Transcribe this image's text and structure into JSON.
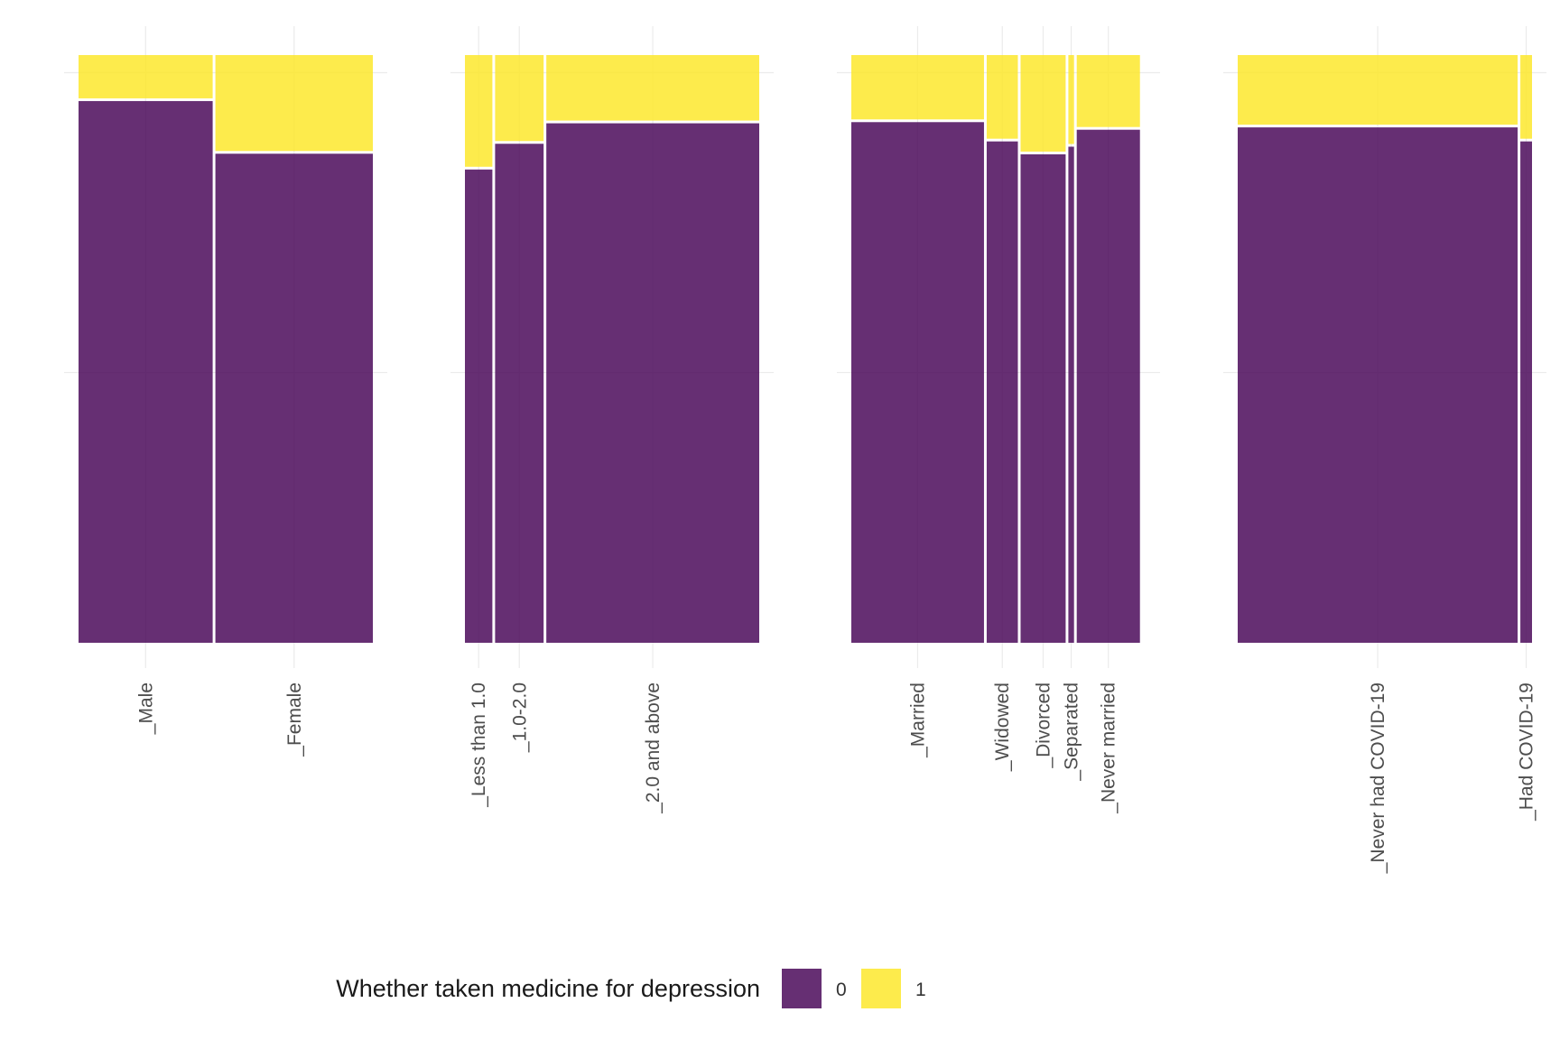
{
  "chart_data": {
    "type": "mosaic",
    "legend": {
      "title": "Whether taken medicine for depression",
      "position": "bottom",
      "entries": [
        {
          "label": "0",
          "color": "#440154"
        },
        {
          "label": "1",
          "color": "#FDE725"
        }
      ]
    },
    "grid": true,
    "panels": [
      {
        "categories": [
          {
            "label": "_Male",
            "share": 0.46,
            "value_0": 0.926,
            "value_1": 0.074
          },
          {
            "label": "_Female",
            "share": 0.54,
            "value_0": 0.836,
            "value_1": 0.164
          }
        ]
      },
      {
        "categories": [
          {
            "label": "_Less than 1.0",
            "share": 0.095,
            "value_0": 0.809,
            "value_1": 0.191
          },
          {
            "label": "_1.0-2.0",
            "share": 0.168,
            "value_0": 0.853,
            "value_1": 0.147
          },
          {
            "label": "_2.0 and above",
            "share": 0.737,
            "value_0": 0.888,
            "value_1": 0.112
          }
        ]
      },
      {
        "categories": [
          {
            "label": "_Married",
            "share": 0.468,
            "value_0": 0.89,
            "value_1": 0.11
          },
          {
            "label": "_Widowed",
            "share": 0.11,
            "value_0": 0.857,
            "value_1": 0.143
          },
          {
            "label": "_Divorced",
            "share": 0.159,
            "value_0": 0.835,
            "value_1": 0.165
          },
          {
            "label": "_Separated",
            "share": 0.02,
            "value_0": 0.848,
            "value_1": 0.152
          },
          {
            "label": "_Never married",
            "share": 0.223,
            "value_0": 0.877,
            "value_1": 0.123
          }
        ]
      },
      {
        "categories": [
          {
            "label": "_Never had COVID-19",
            "share": 0.96,
            "value_0": 0.881,
            "value_1": 0.119
          },
          {
            "label": "_Had COVID-19",
            "share": 0.04,
            "value_0": 0.857,
            "value_1": 0.143
          }
        ]
      }
    ]
  }
}
